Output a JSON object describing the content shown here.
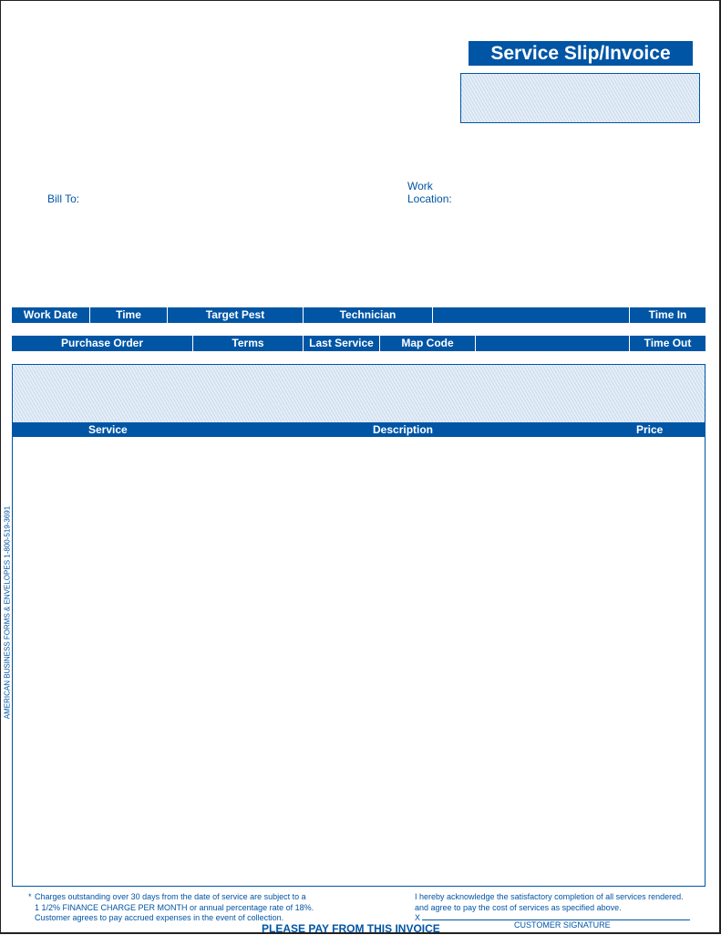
{
  "title": "Service Slip/Invoice",
  "bill_to": "Bill To:",
  "work_location": [
    "Work",
    "Location:"
  ],
  "row1": [
    "Work Date",
    "Time",
    "Target Pest",
    "Technician",
    "",
    "Time In"
  ],
  "row2": [
    "Purchase Order",
    "Terms",
    "Last Service",
    "Map Code",
    "",
    "Time Out"
  ],
  "table_headers": {
    "service": "Service",
    "description": "Description",
    "price": "Price"
  },
  "side_text": "AMERICAN BUSINESS FORMS & ENVELOPES 1-800-519-3691",
  "footer": {
    "asterisk": "*",
    "terms": [
      "Charges outstanding over 30 days from the date of service are subject to a",
      "1 1/2% FINANCE CHARGE PER MONTH or annual percentage rate of 18%.",
      "Customer agrees to pay accrued expenses in the event of collection."
    ],
    "ack": [
      "I hereby acknowledge the satisfactory completion of all services rendered.",
      "and agree to pay the cost of services as specified above."
    ],
    "x": "X",
    "signature": "CUSTOMER SIGNATURE",
    "pay": "PLEASE PAY FROM THIS INVOICE"
  },
  "colors": {
    "brand": "#0055a5"
  }
}
